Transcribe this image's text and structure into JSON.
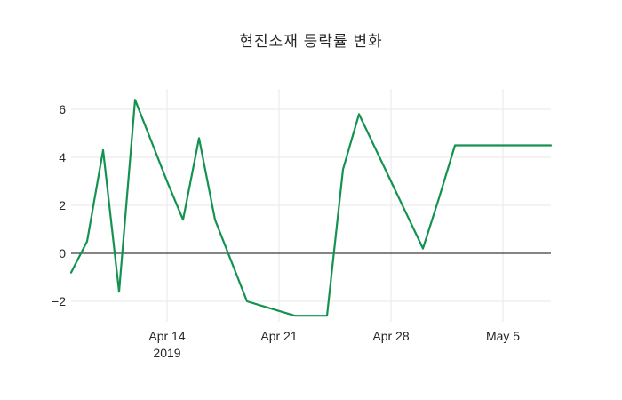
{
  "chart_data": {
    "type": "line",
    "title": "현진소재 등락률 변화",
    "xlabel": "",
    "ylabel": "",
    "legend": "none",
    "grid": true,
    "zero_line": true,
    "ylim": [
      -2.85,
      6.85
    ],
    "x": [
      "2019-04-08",
      "2019-04-09",
      "2019-04-10",
      "2019-04-11",
      "2019-04-12",
      "2019-04-13",
      "2019-04-14",
      "2019-04-15",
      "2019-04-16",
      "2019-04-17",
      "2019-04-18",
      "2019-04-19",
      "2019-04-20",
      "2019-04-21",
      "2019-04-22",
      "2019-04-23",
      "2019-04-24",
      "2019-04-25",
      "2019-04-26",
      "2019-04-27",
      "2019-04-28",
      "2019-04-29",
      "2019-04-30",
      "2019-05-01",
      "2019-05-02",
      "2019-05-03",
      "2019-05-04",
      "2019-05-05",
      "2019-05-06",
      "2019-05-07",
      "2019-05-08"
    ],
    "series": [
      {
        "name": "등락률",
        "color": "#149250",
        "values": [
          -0.8,
          0.5,
          4.3,
          -1.6,
          6.4,
          4.7,
          3.0,
          1.4,
          4.8,
          1.4,
          -0.3,
          -2.0,
          -2.2,
          -2.4,
          -2.6,
          -2.6,
          -2.6,
          3.5,
          5.8,
          4.4,
          3.0,
          1.6,
          0.2,
          2.3,
          4.5,
          4.5,
          4.5,
          4.5,
          4.5,
          4.5,
          4.5
        ]
      }
    ],
    "x_ticks": [
      {
        "date": "2019-04-14",
        "label": "Apr 14",
        "sublabel": "2019"
      },
      {
        "date": "2019-04-21",
        "label": "Apr 21",
        "sublabel": ""
      },
      {
        "date": "2019-04-28",
        "label": "Apr 28",
        "sublabel": ""
      },
      {
        "date": "2019-05-05",
        "label": "May 5",
        "sublabel": ""
      }
    ],
    "y_ticks": [
      {
        "value": 6,
        "label": "6"
      },
      {
        "value": 4,
        "label": "4"
      },
      {
        "value": 2,
        "label": "2"
      },
      {
        "value": 0,
        "label": "0"
      },
      {
        "value": -2,
        "label": "−2"
      }
    ],
    "style": {
      "line_color": "#149250",
      "grid_color": "#e7e7e7",
      "zero_line_color": "#3c3c3c",
      "text_color": "#262626",
      "background": "#ffffff"
    }
  }
}
